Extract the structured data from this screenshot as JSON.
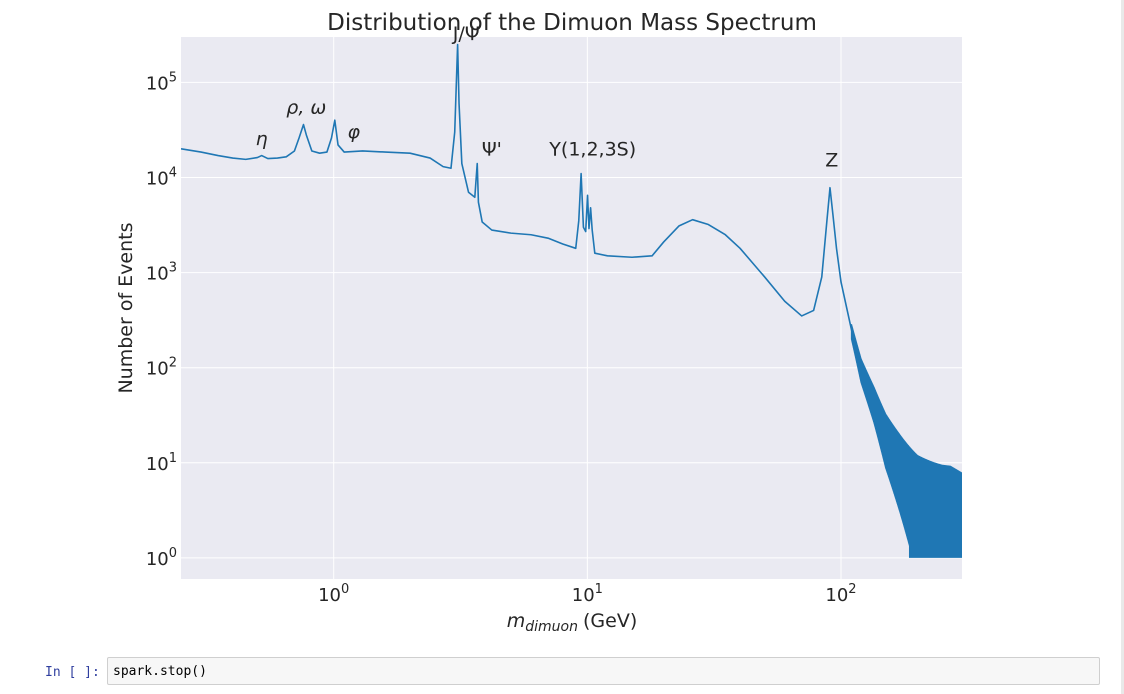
{
  "chart_data": {
    "type": "line",
    "title": "Distribution of the Dimuon Mass Spectrum",
    "xlabel_italic": "m",
    "xlabel_sub": "dimuon",
    "xlabel_unit": "(GeV)",
    "ylabel": "Number of Events",
    "x_scale": "log",
    "y_scale": "log",
    "xlim": [
      0.25,
      300
    ],
    "ylim": [
      0.6,
      300000
    ],
    "grid": true,
    "x_ticks": [
      {
        "value": 1,
        "base": "10",
        "exp": "0"
      },
      {
        "value": 10,
        "base": "10",
        "exp": "1"
      },
      {
        "value": 100,
        "base": "10",
        "exp": "2"
      }
    ],
    "y_ticks": [
      {
        "value": 1,
        "base": "10",
        "exp": "0"
      },
      {
        "value": 10,
        "base": "10",
        "exp": "1"
      },
      {
        "value": 100,
        "base": "10",
        "exp": "2"
      },
      {
        "value": 1000,
        "base": "10",
        "exp": "3"
      },
      {
        "value": 10000,
        "base": "10",
        "exp": "4"
      },
      {
        "value": 100000,
        "base": "10",
        "exp": "5"
      }
    ],
    "series": [
      {
        "color": "#1f77b4",
        "points": [
          [
            0.25,
            20000
          ],
          [
            0.3,
            18500
          ],
          [
            0.35,
            17000
          ],
          [
            0.4,
            16000
          ],
          [
            0.45,
            15500
          ],
          [
            0.5,
            16200
          ],
          [
            0.52,
            17000
          ],
          [
            0.55,
            15800
          ],
          [
            0.6,
            16000
          ],
          [
            0.65,
            16500
          ],
          [
            0.7,
            19000
          ],
          [
            0.73,
            26000
          ],
          [
            0.76,
            36000
          ],
          [
            0.78,
            28000
          ],
          [
            0.82,
            19000
          ],
          [
            0.88,
            18000
          ],
          [
            0.94,
            18500
          ],
          [
            0.98,
            26000
          ],
          [
            1.01,
            40000
          ],
          [
            1.04,
            22000
          ],
          [
            1.1,
            18500
          ],
          [
            1.3,
            19000
          ],
          [
            1.6,
            18500
          ],
          [
            2.0,
            18000
          ],
          [
            2.4,
            16000
          ],
          [
            2.7,
            13000
          ],
          [
            2.9,
            12500
          ],
          [
            3.0,
            30000
          ],
          [
            3.08,
            250000
          ],
          [
            3.12,
            60000
          ],
          [
            3.2,
            14000
          ],
          [
            3.4,
            7000
          ],
          [
            3.6,
            6200
          ],
          [
            3.68,
            14000
          ],
          [
            3.72,
            5500
          ],
          [
            3.85,
            3400
          ],
          [
            4.2,
            2800
          ],
          [
            5,
            2600
          ],
          [
            6,
            2500
          ],
          [
            7,
            2300
          ],
          [
            8,
            2000
          ],
          [
            9.0,
            1800
          ],
          [
            9.25,
            3500
          ],
          [
            9.45,
            11000
          ],
          [
            9.65,
            3000
          ],
          [
            9.85,
            2700
          ],
          [
            10.02,
            6500
          ],
          [
            10.15,
            2900
          ],
          [
            10.3,
            4800
          ],
          [
            10.45,
            2800
          ],
          [
            10.7,
            1600
          ],
          [
            12,
            1500
          ],
          [
            15,
            1450
          ],
          [
            18,
            1500
          ],
          [
            20,
            2100
          ],
          [
            23,
            3100
          ],
          [
            26,
            3600
          ],
          [
            30,
            3200
          ],
          [
            35,
            2500
          ],
          [
            40,
            1800
          ],
          [
            50,
            900
          ],
          [
            60,
            500
          ],
          [
            70,
            350
          ],
          [
            78,
            400
          ],
          [
            84,
            900
          ],
          [
            88,
            3500
          ],
          [
            90.5,
            7800
          ],
          [
            93,
            4000
          ],
          [
            96,
            1800
          ],
          [
            100,
            800
          ],
          [
            110,
            250
          ],
          [
            120,
            100
          ],
          [
            135,
            45
          ],
          [
            150,
            20
          ],
          [
            170,
            10
          ],
          [
            200,
            4
          ],
          [
            250,
            2
          ],
          [
            300,
            1.5
          ]
        ]
      }
    ],
    "annotations": [
      {
        "text": "η",
        "italic": true,
        "x": 0.52,
        "y": 22000
      },
      {
        "text": "ρ, ω",
        "italic": true,
        "x": 0.78,
        "y": 47000
      },
      {
        "text": "φ",
        "italic": true,
        "x": 1.2,
        "y": 26000
      },
      {
        "text": "J/Ψ",
        "italic": false,
        "x": 3.33,
        "y": 280000
      },
      {
        "text": "Ψ'",
        "italic": false,
        "x": 4.2,
        "y": 17000
      },
      {
        "text": "Υ(1,2,3S)",
        "italic": false,
        "x": 10.5,
        "y": 17000
      },
      {
        "text": "Z",
        "italic": false,
        "x": 92,
        "y": 13000
      }
    ]
  },
  "notebook": {
    "prompt": "In [ ]:",
    "code": "spark.stop()"
  }
}
